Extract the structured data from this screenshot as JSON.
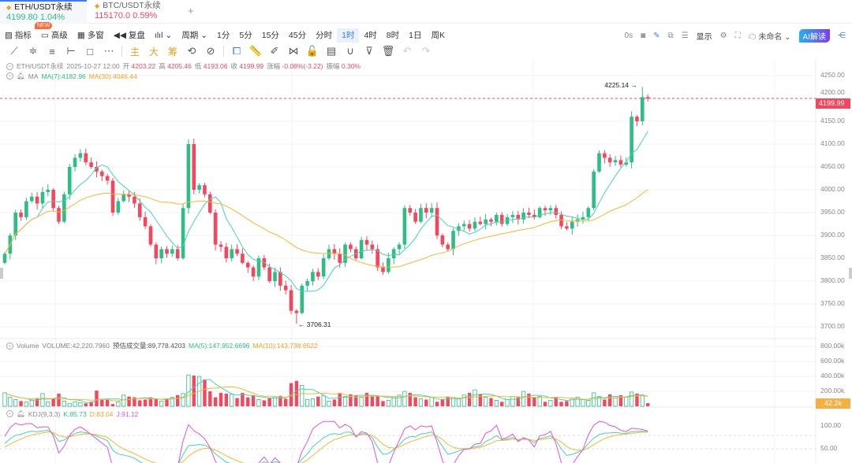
{
  "tabs": [
    {
      "name": "ETH/USDT永续",
      "price": "4199.80",
      "change": "1.04%",
      "dir": "up"
    },
    {
      "name": "BTC/USDT永续",
      "price": "115170.0",
      "change": "0.59%",
      "dir": "down"
    }
  ],
  "new_badge": "NEW",
  "toolbar": {
    "items": [
      "指标",
      "高级",
      "多窗",
      "复盘"
    ],
    "period": "周期",
    "intervals": [
      "1分",
      "5分",
      "15分",
      "45分",
      "分时",
      "1时",
      "4时",
      "8时",
      "1日",
      "周K"
    ],
    "selected": "1时",
    "right": {
      "countdown": "0s",
      "display": "显示",
      "layout": "未命名",
      "ai": "AI解读"
    }
  },
  "drawing": {
    "labels": [
      "主",
      "大",
      "筹"
    ]
  },
  "ohlc": {
    "symbol": "ETH/USDT永续",
    "time": "2025-10-27 12:00",
    "o_label": "开",
    "o": "4203.22",
    "h_label": "高",
    "h": "4205.46",
    "l_label": "低",
    "l": "4193.06",
    "c_label": "收",
    "c": "4199.99",
    "chg_label": "涨幅",
    "chg": "-0.08%(-3.22)",
    "amp_label": "振幅",
    "amp": "0.30%"
  },
  "ma": {
    "label": "MA",
    "ma7": "MA(7):4182.96",
    "ma30": "MA(30):4046.44"
  },
  "volume": {
    "label": "Volume",
    "value": "VOLUME:42,220.7960",
    "est": "预估成交量:89,778.4203",
    "ma5": "MA(5):147,952.6696",
    "ma10": "MA(10):143,738.6522",
    "tag": "42.2k"
  },
  "kdj": {
    "label": "KDJ(9,3,3)",
    "k": "K:85.73",
    "d": "D:83.04",
    "j": "J:91.12"
  },
  "current_price": "4199.99",
  "high_mark": "4225.14",
  "low_mark": "3706.31",
  "colors": {
    "up": "#2ebd85",
    "down": "#f6465d",
    "ma7": "#45d3b4",
    "ma30": "#f8b631",
    "j": "#e052d8"
  },
  "chart_data": {
    "type": "candlestick",
    "price_ticks": [
      "4250.00",
      "4200.00",
      "4150.00",
      "4100.00",
      "4050.00",
      "4000.00",
      "3950.00",
      "3900.00",
      "3850.00",
      "3800.00",
      "3750.00",
      "3700.00"
    ],
    "price_range": [
      3692,
      4252
    ],
    "volume_ticks": [
      "800.00k",
      "600.00k",
      "400.00k",
      "200.00k"
    ],
    "kdj_ticks": [
      "100.00",
      "50.00"
    ],
    "closes": [
      3860,
      3900,
      3950,
      3940,
      3975,
      3985,
      3970,
      3995,
      4000,
      3960,
      3930,
      3990,
      4050,
      4070,
      4080,
      4060,
      4050,
      4040,
      4030,
      4020,
      3950,
      3975,
      3990,
      3985,
      3970,
      3940,
      3920,
      3880,
      3850,
      3870,
      3860,
      3870,
      3850,
      3960,
      4100,
      4000,
      4010,
      3990,
      3950,
      3880,
      3875,
      3850,
      3870,
      3860,
      3840,
      3830,
      3810,
      3850,
      3830,
      3800,
      3820,
      3790,
      3780,
      3735,
      3730,
      3790,
      3800,
      3820,
      3810,
      3850,
      3870,
      3860,
      3840,
      3880,
      3870,
      3850,
      3890,
      3880,
      3870,
      3830,
      3820,
      3850,
      3870,
      3880,
      3960,
      3950,
      3930,
      3960,
      3950,
      3960,
      3900,
      3880,
      3870,
      3910,
      3920,
      3925,
      3915,
      3930,
      3925,
      3935,
      3930,
      3945,
      3925,
      3940,
      3945,
      3935,
      3950,
      3945,
      3940,
      3960,
      3955,
      3960,
      3945,
      3920,
      3915,
      3930,
      3935,
      3940,
      3960,
      4040,
      4080,
      4070,
      4060,
      4065,
      4055,
      4060,
      4160,
      4150,
      4203,
      4199.99
    ],
    "volumes_k": [
      180,
      120,
      90,
      70,
      60,
      80,
      110,
      170,
      60,
      100,
      170,
      70,
      40,
      60,
      50,
      40,
      60,
      210,
      100,
      90,
      30,
      60,
      150,
      130,
      120,
      80,
      90,
      120,
      100,
      70,
      90,
      120,
      150,
      170,
      420,
      410,
      400,
      360,
      200,
      120,
      180,
      170,
      160,
      110,
      180,
      120,
      150,
      90,
      80,
      110,
      130,
      140,
      100,
      310,
      340,
      280,
      90,
      100,
      130,
      140,
      70,
      90,
      180,
      130,
      160,
      150,
      120,
      180,
      130,
      140,
      70,
      80,
      130,
      150,
      200,
      180,
      120,
      100,
      90,
      120,
      60,
      90,
      130,
      120,
      100,
      150,
      180,
      220,
      160,
      120,
      110,
      80,
      60,
      90,
      130,
      120,
      200,
      170,
      120,
      130,
      60,
      80,
      120,
      60,
      70,
      110,
      120,
      90,
      80,
      180,
      130,
      90,
      160,
      110,
      150,
      120,
      190,
      170,
      140,
      42
    ]
  }
}
